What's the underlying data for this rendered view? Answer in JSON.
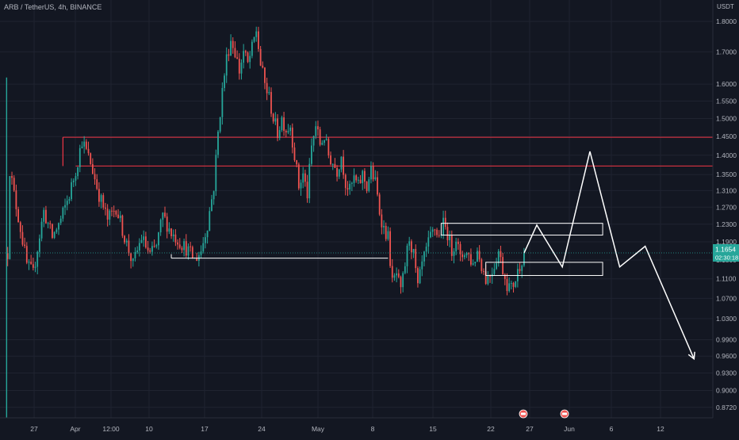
{
  "header": {
    "symbol_line": "ARB / TetherUS, 4h, BINANCE",
    "axis_unit": "USDT"
  },
  "price_axis": {
    "ticks": [
      "1.8000",
      "1.7000",
      "1.6000",
      "1.5500",
      "1.5000",
      "1.4500",
      "1.4000",
      "1.3500",
      "1.3100",
      "1.2700",
      "1.2300",
      "1.1900",
      "1.1500",
      "1.1100",
      "1.0700",
      "1.0300",
      "0.9900",
      "0.9600",
      "0.9300",
      "0.9000",
      "0.8720"
    ],
    "current_price": "1.1654",
    "countdown": "02:30:18",
    "current_color": "#26a69a"
  },
  "time_axis": {
    "ticks": [
      "27",
      "Apr",
      "12:00",
      "10",
      "17",
      "24",
      "May",
      "8",
      "15",
      "22",
      "27",
      "Jun",
      "6",
      "12"
    ]
  },
  "colors": {
    "up": "#26a69a",
    "down": "#ef5350",
    "resistance": "#f23645",
    "drawing": "#ffffff"
  },
  "chart_data": {
    "type": "candlestick",
    "title": "ARB / TetherUS, 4h, BINANCE",
    "scale": "log",
    "ylim": [
      0.855,
      1.86
    ],
    "x_labels": [
      "27",
      "Apr",
      "12:00",
      "10",
      "17",
      "24",
      "May",
      "8",
      "15",
      "22",
      "27",
      "Jun",
      "6",
      "12"
    ],
    "price_path": [
      [
        1.38,
        1.5
      ],
      [
        1.3,
        4
      ],
      [
        1.22,
        7
      ],
      [
        1.14,
        10
      ],
      [
        1.12,
        13
      ],
      [
        1.26,
        18
      ],
      [
        1.2,
        22
      ],
      [
        1.24,
        26
      ],
      [
        1.3,
        30
      ],
      [
        1.36,
        33
      ],
      [
        1.44,
        36
      ],
      [
        1.38,
        40
      ],
      [
        1.3,
        44
      ],
      [
        1.24,
        48
      ],
      [
        1.27,
        52
      ],
      [
        1.2,
        56
      ],
      [
        1.14,
        60
      ],
      [
        1.2,
        64
      ],
      [
        1.16,
        68
      ],
      [
        1.18,
        71
      ],
      [
        1.25,
        74
      ],
      [
        1.21,
        78
      ],
      [
        1.19,
        82
      ],
      [
        1.17,
        86
      ],
      [
        1.15,
        89
      ],
      [
        1.17,
        92
      ],
      [
        1.23,
        95
      ],
      [
        1.32,
        98
      ],
      [
        1.46,
        100
      ],
      [
        1.58,
        102
      ],
      [
        1.68,
        104
      ],
      [
        1.74,
        106
      ],
      [
        1.7,
        108
      ],
      [
        1.64,
        110
      ],
      [
        1.7,
        112
      ],
      [
        1.66,
        114
      ],
      [
        1.71,
        116
      ],
      [
        1.77,
        118
      ],
      [
        1.66,
        120
      ],
      [
        1.6,
        122
      ],
      [
        1.56,
        124
      ],
      [
        1.5,
        126
      ],
      [
        1.46,
        128
      ],
      [
        1.5,
        130
      ],
      [
        1.47,
        132
      ],
      [
        1.48,
        134
      ],
      [
        1.4,
        136
      ],
      [
        1.32,
        138
      ],
      [
        1.35,
        140
      ],
      [
        1.3,
        142
      ],
      [
        1.42,
        144
      ],
      [
        1.48,
        146
      ],
      [
        1.43,
        148
      ],
      [
        1.45,
        150
      ],
      [
        1.4,
        152
      ],
      [
        1.38,
        154
      ],
      [
        1.36,
        156
      ],
      [
        1.4,
        158
      ],
      [
        1.33,
        160
      ],
      [
        1.31,
        162
      ],
      [
        1.34,
        164
      ],
      [
        1.32,
        166
      ],
      [
        1.35,
        168
      ],
      [
        1.32,
        170
      ],
      [
        1.36,
        172
      ],
      [
        1.33,
        174
      ],
      [
        1.26,
        176
      ],
      [
        1.22,
        178
      ],
      [
        1.2,
        180
      ],
      [
        1.1,
        182
      ],
      [
        1.12,
        184
      ],
      [
        1.08,
        186
      ],
      [
        1.14,
        188
      ],
      [
        1.2,
        190
      ],
      [
        1.16,
        192
      ],
      [
        1.09,
        194
      ],
      [
        1.14,
        196
      ],
      [
        1.17,
        198
      ],
      [
        1.2,
        200
      ],
      [
        1.22,
        202
      ],
      [
        1.2,
        204
      ],
      [
        1.23,
        206
      ],
      [
        1.21,
        208
      ],
      [
        1.17,
        210
      ],
      [
        1.2,
        212
      ],
      [
        1.15,
        214
      ],
      [
        1.17,
        216
      ],
      [
        1.16,
        218
      ],
      [
        1.14,
        220
      ],
      [
        1.17,
        222
      ],
      [
        1.14,
        224
      ],
      [
        1.11,
        226
      ],
      [
        1.12,
        228
      ],
      [
        1.14,
        230
      ],
      [
        1.17,
        232
      ],
      [
        1.13,
        234
      ],
      [
        1.1,
        236
      ],
      [
        1.09,
        238
      ],
      [
        1.11,
        240
      ],
      [
        1.14,
        242
      ],
      [
        1.165,
        244
      ]
    ],
    "n_candles": 244,
    "resistance_levels": [
      1.448,
      1.372
    ],
    "horizontal_lines": [
      {
        "y": 1.154,
        "from": 78,
        "to": 180
      }
    ],
    "boxes": [
      {
        "y_top": 1.232,
        "y_bottom": 1.205,
        "from": 205,
        "to": 281
      },
      {
        "y_top": 1.145,
        "y_bottom": 1.117,
        "from": 226,
        "to": 281
      }
    ],
    "projection": [
      [
        244,
        1.165
      ],
      [
        250,
        1.228
      ],
      [
        262,
        1.135
      ],
      [
        275,
        1.41
      ],
      [
        289,
        1.135
      ],
      [
        301,
        1.18
      ],
      [
        324,
        0.955
      ]
    ]
  }
}
